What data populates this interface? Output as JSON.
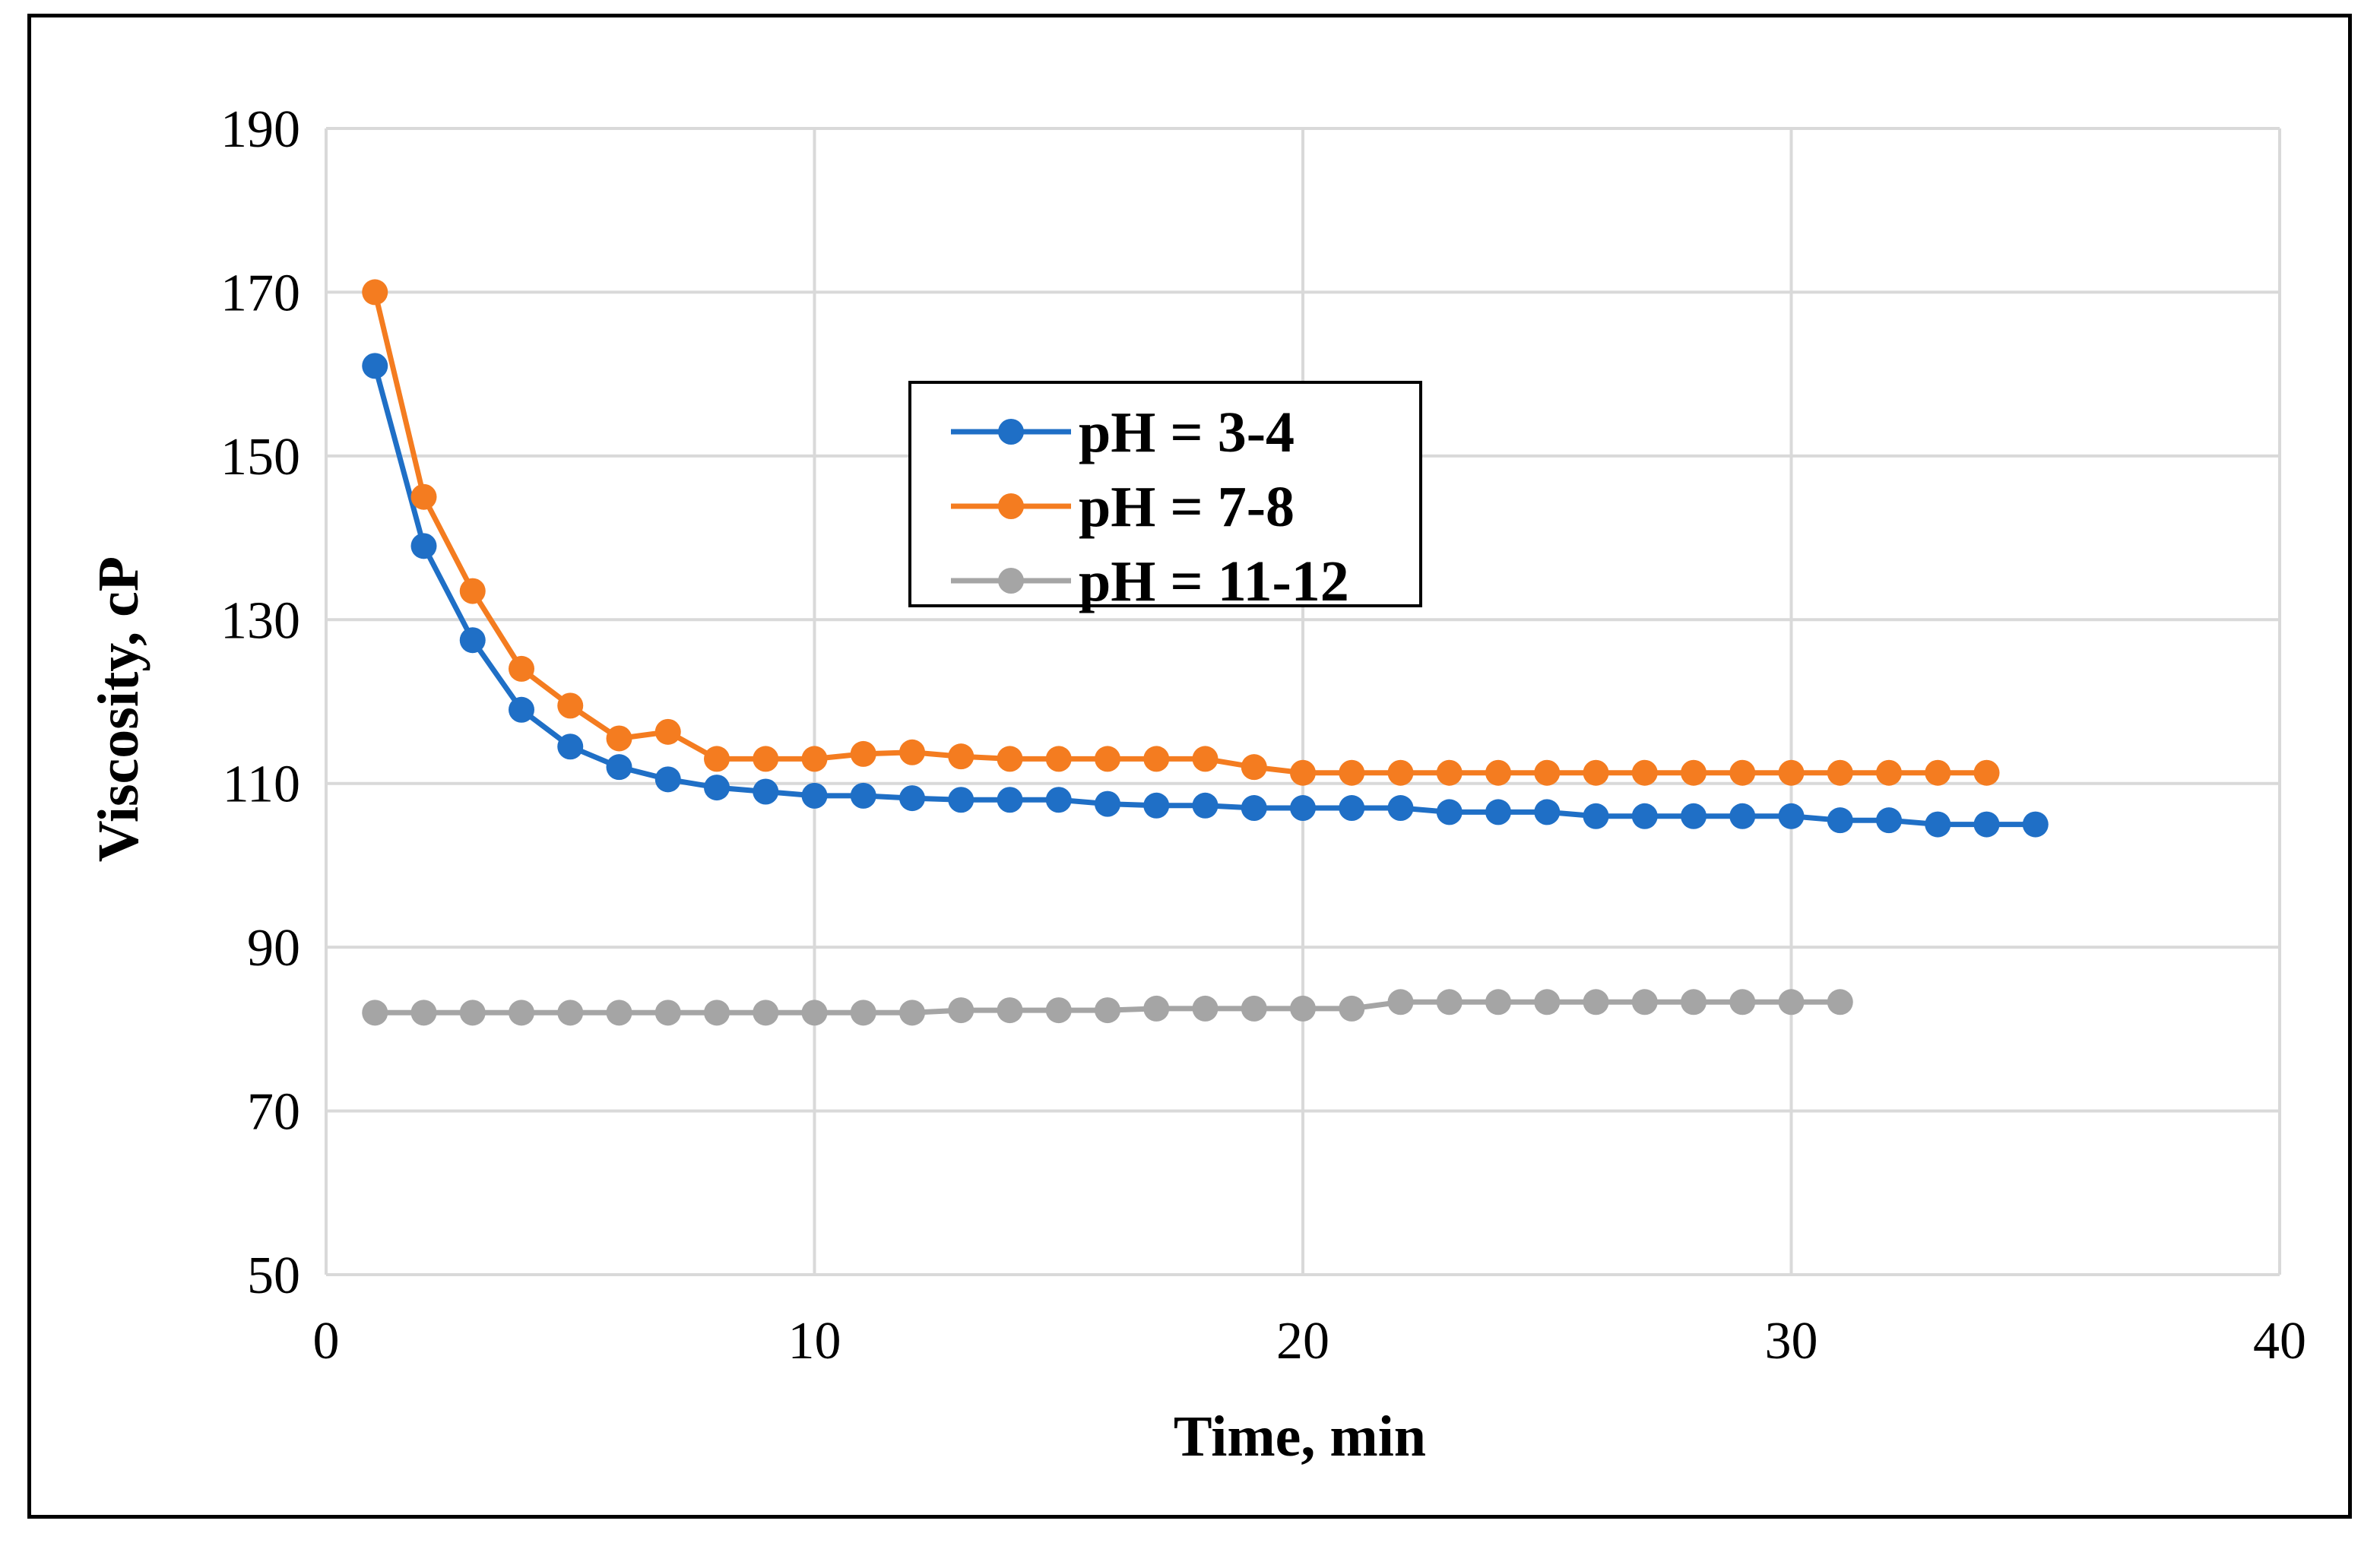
{
  "chart_data": {
    "type": "line",
    "title": "",
    "xlabel": "Time, min",
    "ylabel": "Viscosity, cP",
    "xlim": [
      0,
      40
    ],
    "ylim": [
      50,
      190
    ],
    "xticks": [
      0,
      10,
      20,
      30,
      40
    ],
    "yticks": [
      50,
      70,
      90,
      110,
      130,
      150,
      170,
      190
    ],
    "grid": true,
    "legend_position": "upper-center",
    "series": [
      {
        "name": "pH = 3-4",
        "color": "#1f6fc6",
        "x": [
          1,
          2,
          3,
          4,
          5,
          6,
          7,
          8,
          9,
          10,
          11,
          12,
          13,
          14,
          15,
          16,
          17,
          18,
          19,
          20,
          21,
          22,
          23,
          24,
          25,
          26,
          27,
          28,
          29,
          30,
          31,
          32,
          33,
          34,
          35
        ],
        "y": [
          161,
          139,
          127.5,
          119,
          114.5,
          112,
          110.5,
          109.5,
          109,
          108.5,
          108.5,
          108.2,
          108,
          108,
          108,
          107.5,
          107.3,
          107.3,
          107,
          107,
          107,
          107,
          106.5,
          106.5,
          106.5,
          106,
          106,
          106,
          106,
          106,
          105.5,
          105.5,
          105,
          105,
          105
        ]
      },
      {
        "name": "pH = 7-8",
        "color": "#f47c20",
        "x": [
          1,
          2,
          3,
          4,
          5,
          6,
          7,
          8,
          9,
          10,
          11,
          12,
          13,
          14,
          15,
          16,
          17,
          18,
          19,
          20,
          21,
          22,
          23,
          24,
          25,
          26,
          27,
          28,
          29,
          30,
          31,
          32,
          33,
          34
        ],
        "y": [
          170,
          145,
          133.5,
          124,
          119.5,
          115.5,
          116.3,
          113,
          113,
          113,
          113.6,
          113.8,
          113.3,
          113,
          113,
          113,
          113,
          113,
          112,
          111.3,
          111.3,
          111.3,
          111.3,
          111.3,
          111.3,
          111.3,
          111.3,
          111.3,
          111.3,
          111.3,
          111.3,
          111.3,
          111.3,
          111.3
        ]
      },
      {
        "name": "pH = 11-12",
        "color": "#a5a5a5",
        "x": [
          1,
          2,
          3,
          4,
          5,
          6,
          7,
          8,
          9,
          10,
          11,
          12,
          13,
          14,
          15,
          16,
          17,
          18,
          19,
          20,
          21,
          22,
          23,
          24,
          25,
          26,
          27,
          28,
          29,
          30,
          31
        ],
        "y": [
          82,
          82,
          82,
          82,
          82,
          82,
          82,
          82,
          82,
          82,
          82,
          82,
          82.3,
          82.3,
          82.3,
          82.3,
          82.5,
          82.5,
          82.5,
          82.5,
          82.5,
          83.3,
          83.3,
          83.3,
          83.3,
          83.3,
          83.3,
          83.3,
          83.3,
          83.3,
          83.3
        ]
      }
    ]
  }
}
